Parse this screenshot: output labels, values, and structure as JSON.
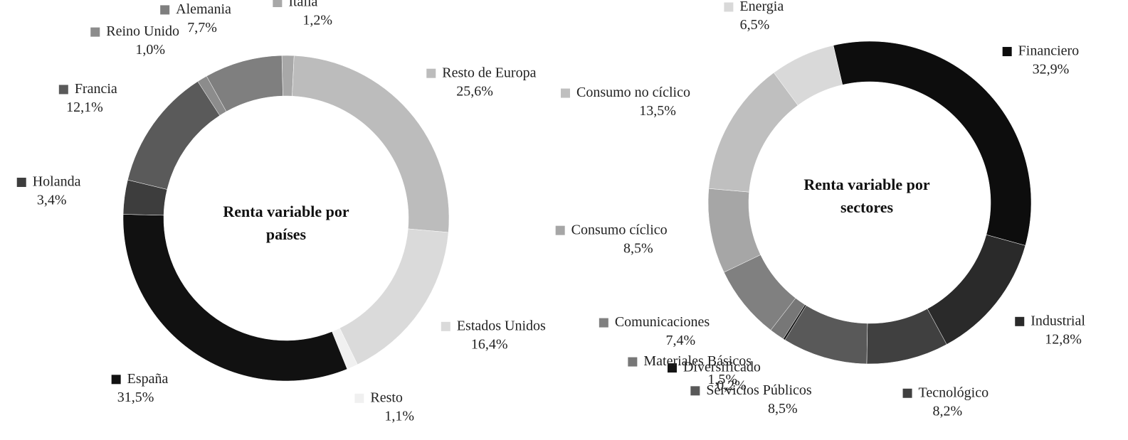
{
  "chart_data": [
    {
      "type": "donut",
      "title": "Renta variable por países",
      "categories": [
        "Italia",
        "Resto de Europa",
        "Estados Unidos",
        "Resto",
        "España",
        "Holanda",
        "Francia",
        "Reino Unido",
        "Alemania"
      ],
      "values": [
        1.2,
        25.6,
        16.4,
        1.1,
        31.5,
        3.4,
        12.1,
        1.0,
        7.7
      ],
      "value_labels": [
        "1,2%",
        "25,6%",
        "16,4%",
        "1,1%",
        "31,5%",
        "3,4%",
        "12,1%",
        "1,0%",
        "7,7%"
      ],
      "colors": [
        "#a8a8a8",
        "#bcbcbc",
        "#dadada",
        "#f0f0f0",
        "#111111",
        "#3d3d3d",
        "#5a5a5a",
        "#8c8c8c",
        "#7f7f7f"
      ]
    },
    {
      "type": "donut",
      "title": "Renta variable por sectores",
      "categories": [
        "Financiero",
        "Industrial",
        "Tecnológico",
        "Servicios Públicos",
        "Diversificado",
        "Materiales Básicos",
        "Comunicaciones",
        "Consumo cíclico",
        "Consumo no cíclico",
        "Energia"
      ],
      "values": [
        32.9,
        12.8,
        8.2,
        8.5,
        0.2,
        1.5,
        7.4,
        8.5,
        13.5,
        6.5
      ],
      "value_labels": [
        "32,9%",
        "12,8%",
        "8,2%",
        "8,5%",
        "0,2%",
        "1,5%",
        "7,4%",
        "8,5%",
        "13,5%",
        "6,5%"
      ],
      "colors": [
        "#0d0d0d",
        "#2a2a2a",
        "#404040",
        "#595959",
        "#151515",
        "#777777",
        "#808080",
        "#a6a6a6",
        "#bfbfbf",
        "#d9d9d9"
      ]
    }
  ]
}
